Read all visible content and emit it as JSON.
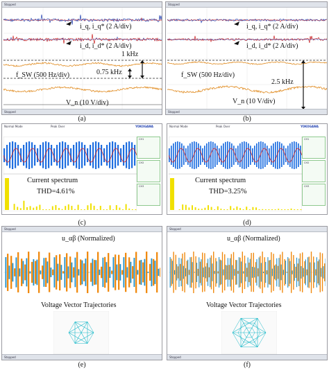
{
  "panel_a": {
    "labels": {
      "iq": "i_q, i_q* (2 A/div)",
      "id": "i_d, i_d* (2 A/div)",
      "fsw": "f_SW (500 Hz/div)",
      "vn": "V_n (10 V/div)",
      "f1": "1 kHz",
      "f2": "0.75 kHz"
    },
    "caption": "(a)"
  },
  "panel_b": {
    "labels": {
      "iq": "i_q, i_q* (2 A/div)",
      "id": "i_d, i_d* (2 A/div)",
      "fsw": "f_SW (500 Hz/div)",
      "vn": "V_n (10 V/div)",
      "f": "2.5 kHz"
    },
    "caption": "(b)"
  },
  "panel_c": {
    "spectrum_label": "Current spectrum",
    "thd": "THD=4.61%",
    "caption": "(c)"
  },
  "panel_d": {
    "spectrum_label": "Current spectrum",
    "thd": "THD=3.25%",
    "caption": "(d)"
  },
  "panel_e": {
    "u_label": "u_αβ (Normalized)",
    "traj_label": "Voltage Vector Trajectories",
    "caption": "(e)"
  },
  "panel_f": {
    "u_label": "u_αβ (Normalized)",
    "traj_label": "Voltage Vector Trajectories",
    "caption": "(f)"
  },
  "scope": {
    "mode": "Normal Mode",
    "peak": "Peak Over",
    "brand": "YOKOGAWA"
  },
  "colors": {
    "iq": "#1f3fb0",
    "id": "#c81e1e",
    "fsw": "#e08a1e",
    "wave_blue": "#1e6ee0",
    "wave_orange": "#f08a10",
    "spectrum": "#f0e000",
    "trajectory": "#18b8c8"
  }
}
